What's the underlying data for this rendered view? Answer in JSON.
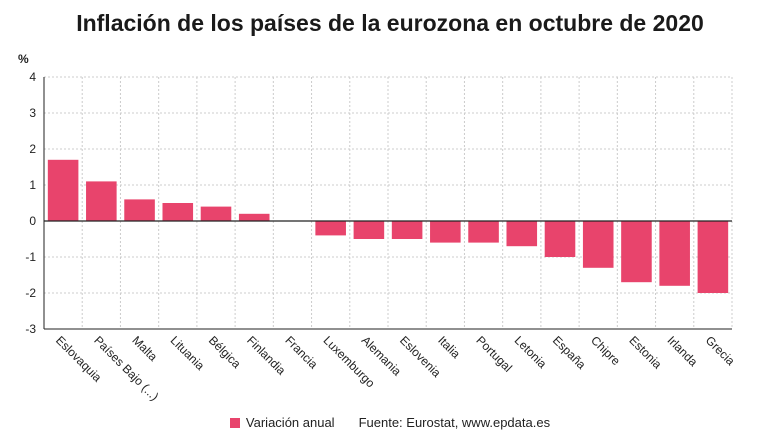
{
  "colors": {
    "bar": "#e8446c",
    "grid": "#cccccc",
    "axis": "#222222",
    "text": "#222222"
  },
  "chart_data": {
    "type": "bar",
    "title": "Inflación de los países de la eurozona en octubre de 2020",
    "ylabel": "%",
    "xlabel": "",
    "ylim": [
      -3,
      4
    ],
    "yticks": [
      -3,
      -2,
      -1,
      0,
      1,
      2,
      3,
      4
    ],
    "grid": true,
    "categories": [
      "Eslovaquia",
      "Países Bajo (...)",
      "Malta",
      "Lituania",
      "Bélgica",
      "Finlandia",
      "Francia",
      "Luxemburgo",
      "Alemania",
      "Eslovenia",
      "Italia",
      "Portugal",
      "Letonia",
      "España",
      "Chipre",
      "Estonia",
      "Irlanda",
      "Grecia"
    ],
    "series": [
      {
        "name": "Variación anual",
        "values": [
          1.7,
          1.1,
          0.6,
          0.5,
          0.4,
          0.2,
          0.0,
          -0.4,
          -0.5,
          -0.5,
          -0.6,
          -0.6,
          -0.7,
          -1.0,
          -1.3,
          -1.7,
          -1.8,
          -2.0
        ]
      }
    ],
    "legend_position": "bottom",
    "source": "Fuente: Eurostat, www.epdata.es"
  }
}
